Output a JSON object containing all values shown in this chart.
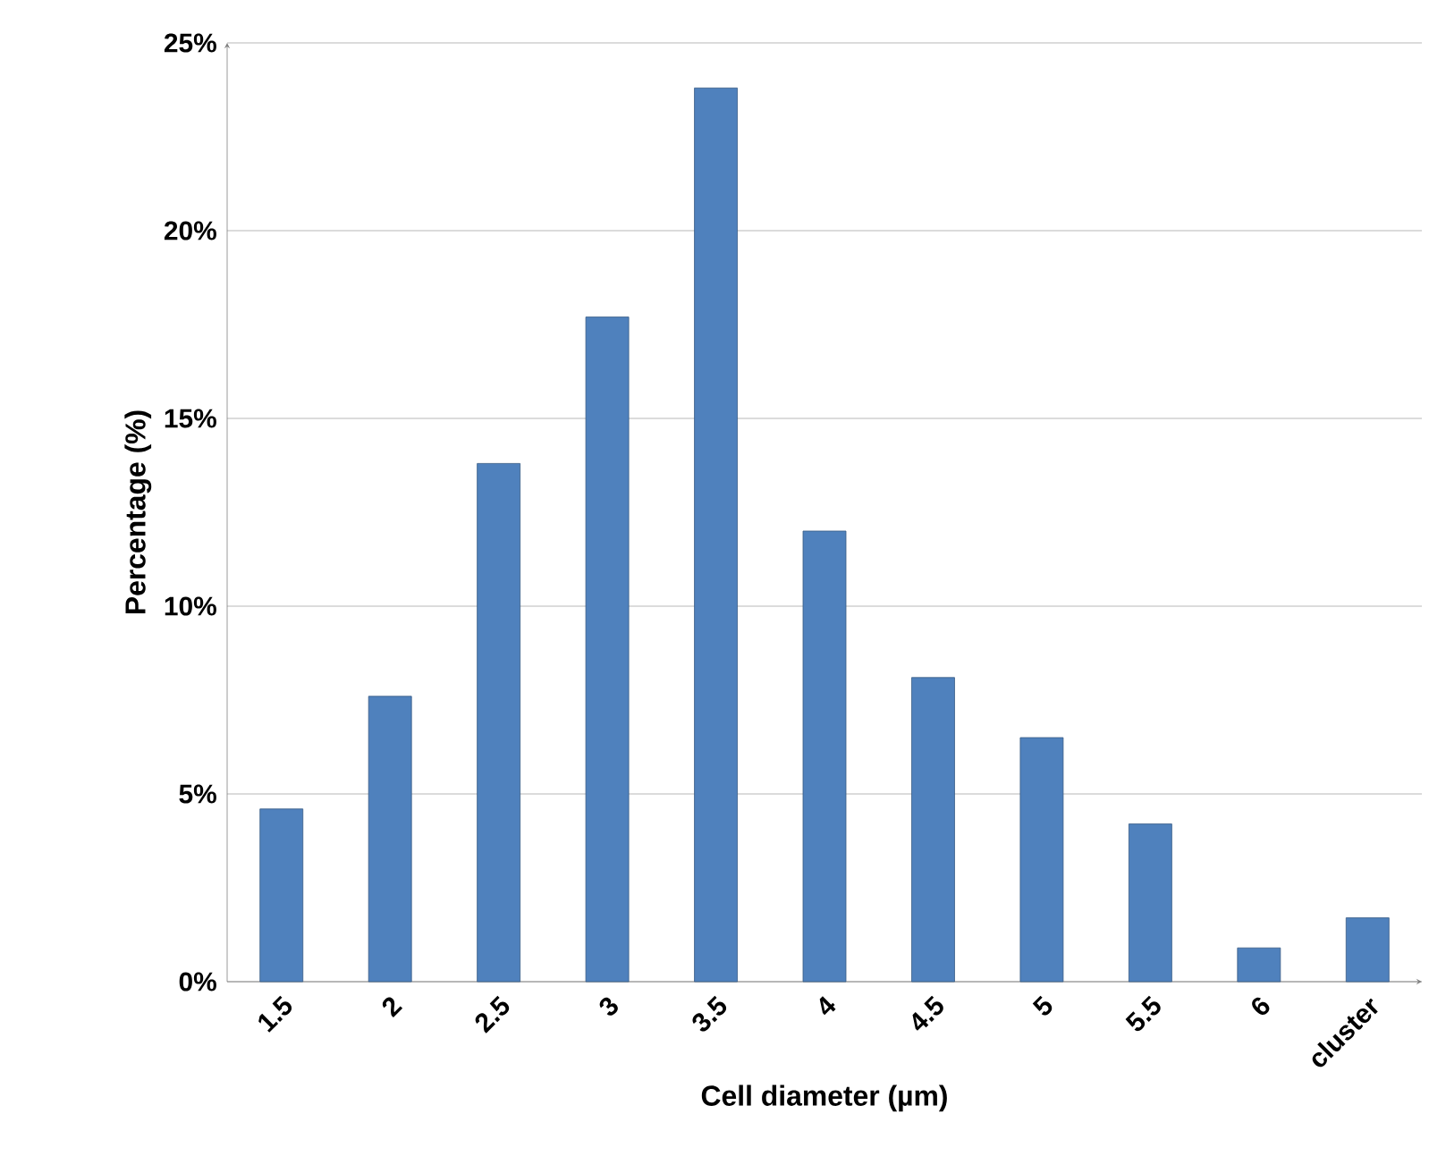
{
  "chart_data": {
    "type": "bar",
    "xlabel": "Cell diameter (µm)",
    "ylabel": "Percentage (%)",
    "categories": [
      "1.5",
      "2",
      "2.5",
      "3",
      "3.5",
      "4",
      "4.5",
      "5",
      "5.5",
      "6",
      "cluster"
    ],
    "values": [
      4.6,
      7.6,
      13.8,
      17.7,
      23.8,
      12.0,
      8.1,
      6.5,
      4.2,
      0.9,
      1.7
    ],
    "color": "#4f81bd",
    "ylim": [
      0,
      25
    ],
    "yticks": [
      {
        "value": 0,
        "label": "0%"
      },
      {
        "value": 5,
        "label": "5%"
      },
      {
        "value": 10,
        "label": "10%"
      },
      {
        "value": 15,
        "label": "15%"
      },
      {
        "value": 20,
        "label": "20%"
      },
      {
        "value": 25,
        "label": "25%"
      }
    ],
    "grid": "y"
  }
}
